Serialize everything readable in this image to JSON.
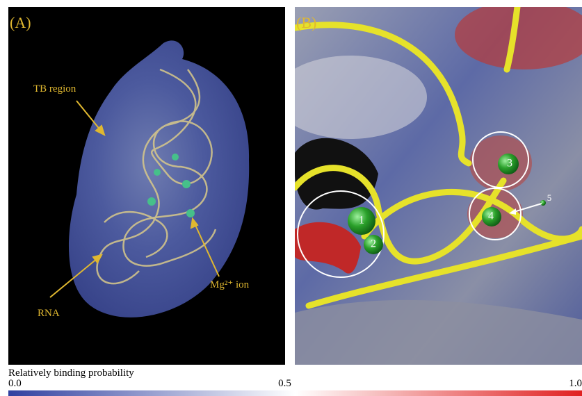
{
  "panel_a": {
    "label": "(A)",
    "annotations": {
      "tb_region": "TB region",
      "rna": "RNA",
      "ion": "Mg²⁺ ion"
    }
  },
  "panel_b": {
    "label": "(B)",
    "sites": [
      "1",
      "2",
      "3",
      "4",
      "5"
    ]
  },
  "colorbar": {
    "title": "Relatively binding probability",
    "range": [
      0,
      1
    ],
    "ticks": [
      {
        "value": 0,
        "label": "0.0"
      },
      0.5,
      {
        "value": 1,
        "label": "1.0"
      }
    ]
  }
}
